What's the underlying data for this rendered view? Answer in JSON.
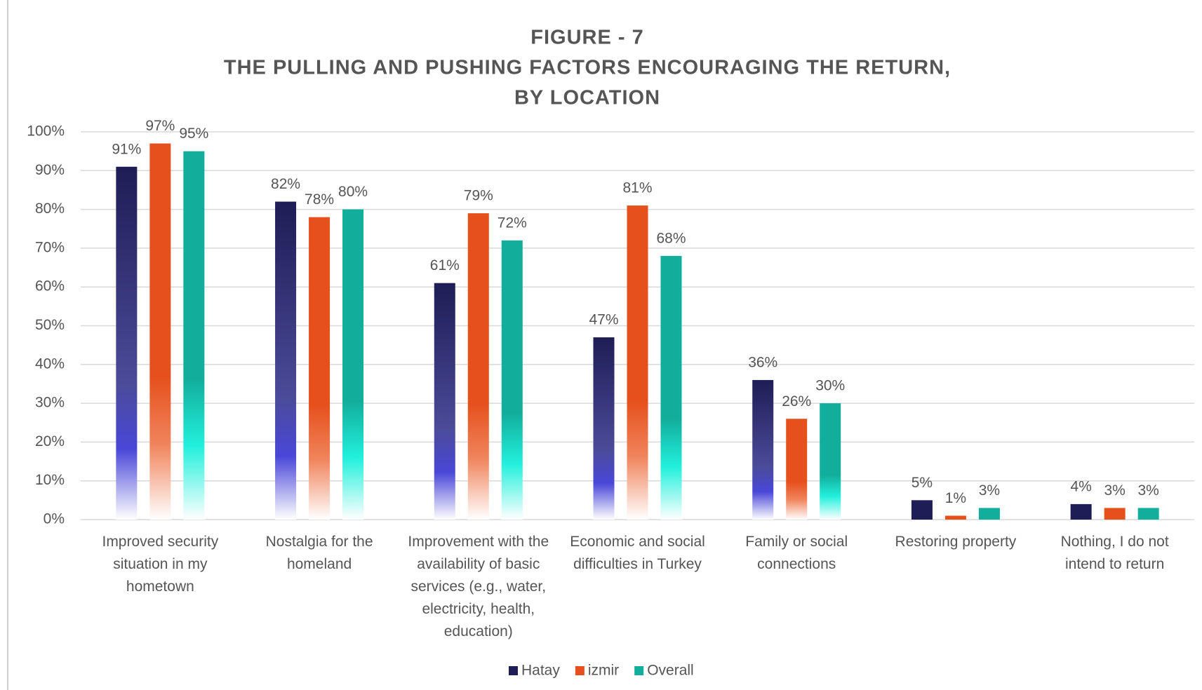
{
  "chart_data": {
    "type": "bar",
    "title": [
      "FIGURE - 7",
      "THE PULLING AND PUSHING FACTORS ENCOURAGING THE RETURN,",
      "BY LOCATION"
    ],
    "categories": [
      "Improved security situation in my hometown",
      "Nostalgia for the homeland",
      "Improvement with the availability of basic services (e.g., water, electricity, health, education)",
      "Economic and social difficulties in Turkey",
      "Family or social connections",
      "Restoring property",
      "Nothing, I do not intend to return"
    ],
    "series": [
      {
        "name": "Hatay",
        "color": "#1e1d55",
        "values": [
          91,
          82,
          61,
          47,
          36,
          5,
          4
        ],
        "value_labels": [
          "91%",
          "82%",
          "61%",
          "47%",
          "36%",
          "5%",
          "4%"
        ]
      },
      {
        "name": "izmir",
        "color": "#e6501c",
        "values": [
          97,
          78,
          79,
          81,
          26,
          1,
          3
        ],
        "value_labels": [
          "97%",
          "78%",
          "79%",
          "81%",
          "26%",
          "1%",
          "3%"
        ]
      },
      {
        "name": "Overall",
        "color": "#12ae9c",
        "values": [
          95,
          80,
          72,
          68,
          30,
          3,
          3
        ],
        "value_labels": [
          "95%",
          "80%",
          "72%",
          "68%",
          "30%",
          "3%",
          "3%"
        ]
      }
    ],
    "ylim": [
      0,
      100
    ],
    "yticks": [
      {
        "value": 0,
        "label": "0%"
      },
      {
        "value": 10,
        "label": "10%"
      },
      {
        "value": 20,
        "label": "20%"
      },
      {
        "value": 30,
        "label": "30%"
      },
      {
        "value": 40,
        "label": "40%"
      },
      {
        "value": 50,
        "label": "50%"
      },
      {
        "value": 60,
        "label": "60%"
      },
      {
        "value": 70,
        "label": "70%"
      },
      {
        "value": 80,
        "label": "80%"
      },
      {
        "value": 90,
        "label": "90%"
      },
      {
        "value": 100,
        "label": "100%"
      }
    ],
    "grid": true,
    "legend": "bottom"
  }
}
